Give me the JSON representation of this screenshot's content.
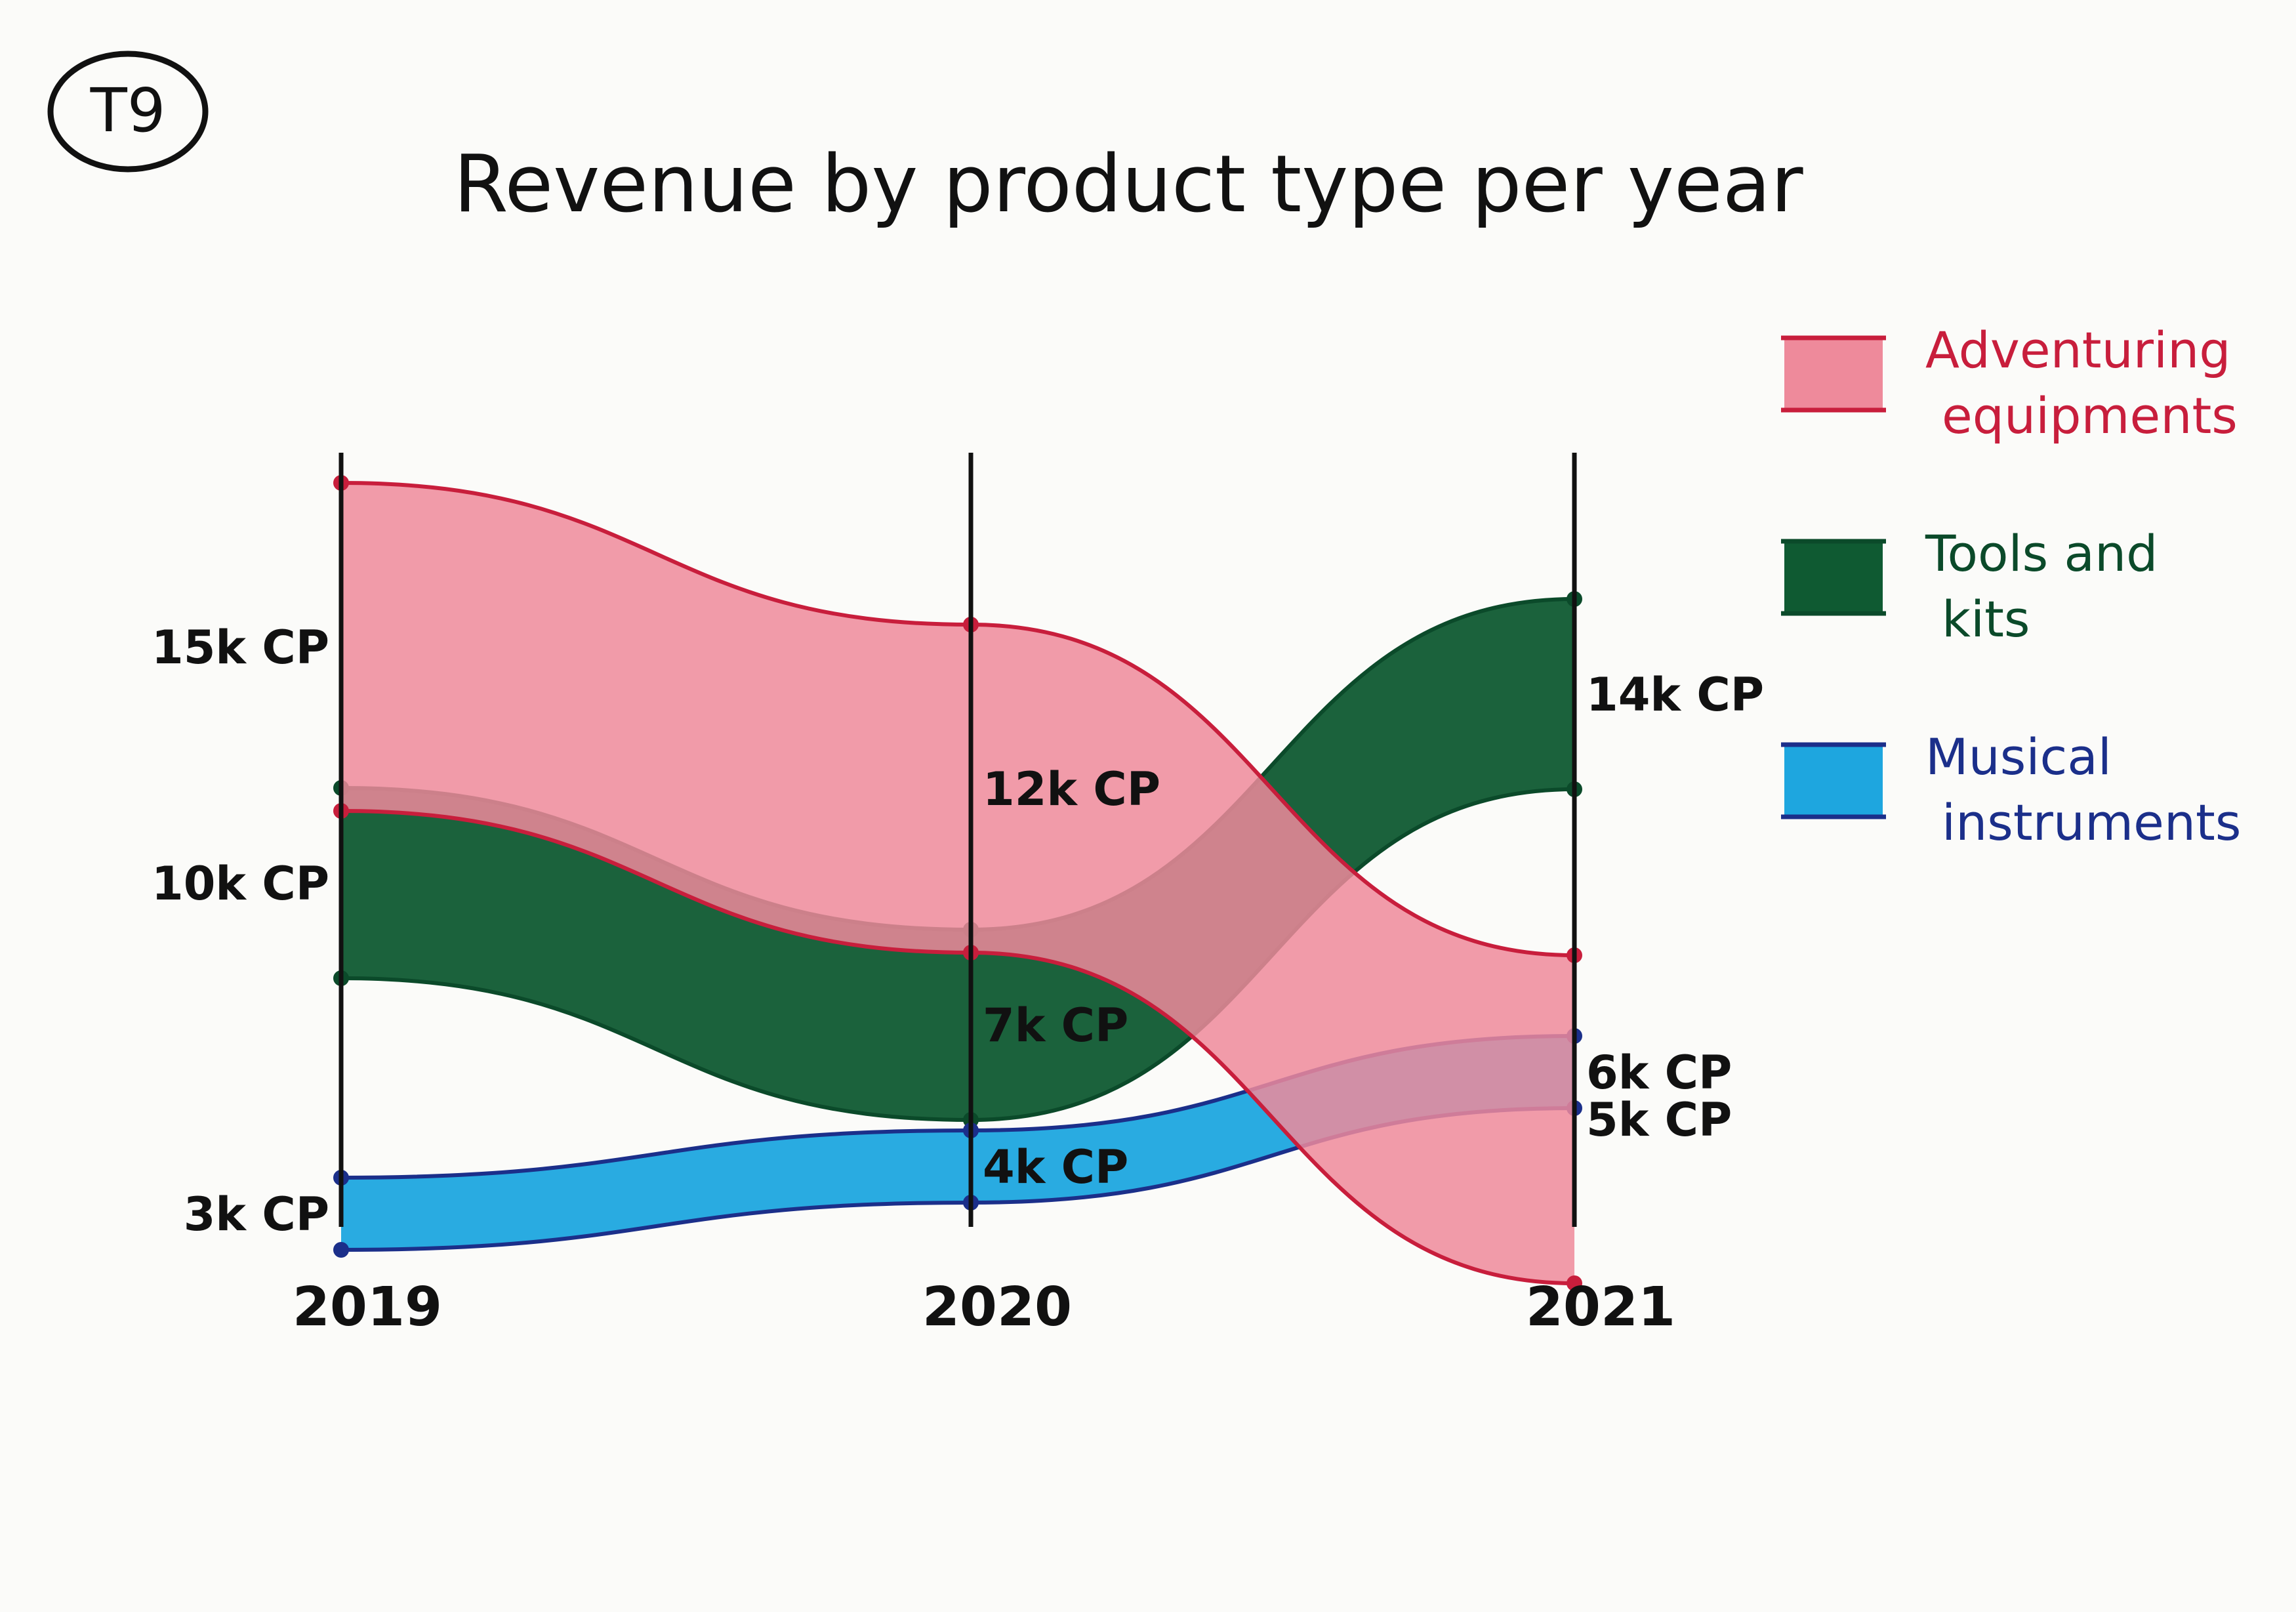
{
  "tag": "T9",
  "colors": {
    "adventuring_fill": "#ee8a9b",
    "adventuring_line": "#c81e3c",
    "tools_fill": "#0f5a32",
    "tools_line": "#0b4a2a",
    "musical_fill": "#1ea6df",
    "musical_line": "#1b2f8a",
    "axis": "#111111",
    "text": "#111111"
  },
  "chart_data": {
    "type": "area",
    "title": "Revenue by product type per year",
    "xlabel": "",
    "ylabel": "",
    "categories": [
      "2019",
      "2020",
      "2021"
    ],
    "legend_position": "top-right",
    "grid": false,
    "series": [
      {
        "name": "Adventuring equipments",
        "values": [
          15,
          12,
          5
        ],
        "labels": [
          "15k CP",
          "12k CP",
          "5k CP"
        ]
      },
      {
        "name": "Tools and kits",
        "values": [
          10,
          7,
          14
        ],
        "labels": [
          "10k CP",
          "7k CP",
          "14k CP"
        ]
      },
      {
        "name": "Musical instruments",
        "values": [
          3,
          4,
          6
        ],
        "labels": [
          "3k CP",
          "4k CP",
          "6k CP"
        ]
      }
    ]
  }
}
